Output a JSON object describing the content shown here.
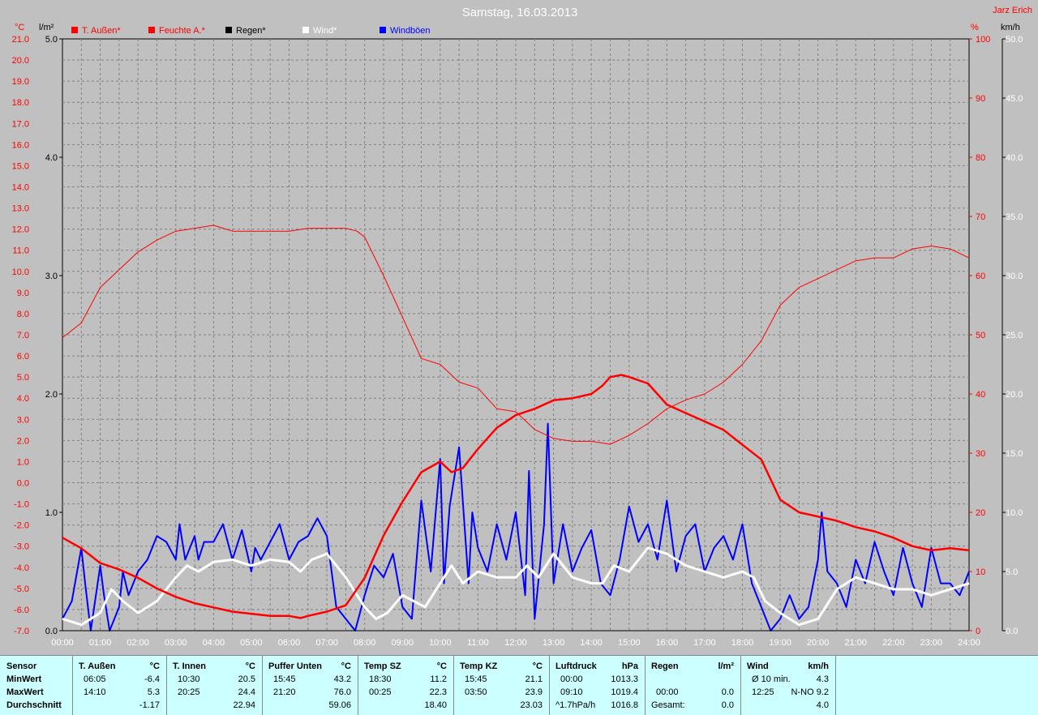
{
  "chart_data": {
    "type": "line",
    "title": "Samstag, 16.03.2013",
    "author": "Jarz Erich",
    "x_ticks": [
      "00:00",
      "01:00",
      "02:00",
      "03:00",
      "04:00",
      "05:00",
      "06:00",
      "07:00",
      "08:00",
      "09:00",
      "10:00",
      "11:00",
      "12:00",
      "13:00",
      "14:00",
      "15:00",
      "16:00",
      "17:00",
      "18:00",
      "19:00",
      "20:00",
      "21:00",
      "22:00",
      "23:00",
      "24:00"
    ],
    "axes": {
      "temp": {
        "unit": "°C",
        "range": [
          -7,
          21
        ],
        "ticks": [
          "21.0",
          "20.0",
          "19.0",
          "18.0",
          "17.0",
          "16.0",
          "15.0",
          "14.0",
          "13.0",
          "12.0",
          "11.0",
          "10.0",
          "9.0",
          "8.0",
          "7.0",
          "6.0",
          "5.0",
          "4.0",
          "3.0",
          "2.0",
          "1.0",
          "0.0",
          "-1.0",
          "-2.0",
          "-3.0",
          "-4.0",
          "-5.0",
          "-6.0",
          "-7.0"
        ],
        "color": "#ff0000"
      },
      "rain": {
        "unit": "l/m²",
        "range": [
          0,
          5
        ],
        "ticks": [
          "5.0",
          "4.0",
          "3.0",
          "2.0",
          "1.0",
          "0.0"
        ],
        "color": "#000000"
      },
      "humidity": {
        "unit": "%",
        "range": [
          0,
          100
        ],
        "ticks": [
          "100",
          "90",
          "80",
          "70",
          "60",
          "50",
          "40",
          "30",
          "20",
          "10",
          "0"
        ],
        "color": "#ff0000"
      },
      "wind": {
        "unit": "km/h",
        "range": [
          0,
          50
        ],
        "ticks": [
          "50.0",
          "45.0",
          "40.0",
          "35.0",
          "30.0",
          "25.0",
          "20.0",
          "15.0",
          "10.0",
          "5.0",
          "0.0"
        ],
        "color": "#ffffff"
      }
    },
    "grid": true,
    "legend": [
      {
        "name": "T. Außen*",
        "color": "#ff0000"
      },
      {
        "name": "Feuchte A.*",
        "color": "#ff0000"
      },
      {
        "name": "Regen*",
        "color": "#000000"
      },
      {
        "name": "Wind*",
        "color": "#ffffff"
      },
      {
        "name": "Windböen",
        "color": "#0000ff"
      }
    ],
    "series": [
      {
        "name": "T. Außen*",
        "axis": "temp",
        "color": "#ff0000",
        "x": [
          0,
          0.5,
          1,
          1.5,
          2,
          2.5,
          3,
          3.5,
          4,
          4.5,
          5,
          5.5,
          6,
          6.3,
          6.5,
          7,
          7.5,
          8,
          8.5,
          9,
          9.5,
          10,
          10.3,
          10.6,
          11,
          11.5,
          12,
          12.5,
          13,
          13.5,
          14,
          14.3,
          14.5,
          14.8,
          15,
          15.5,
          16,
          16.5,
          17,
          17.5,
          18,
          18.5,
          19,
          19.5,
          20,
          20.5,
          21,
          21.5,
          22,
          22.5,
          23,
          23.5,
          24
        ],
        "values": [
          -2.6,
          -3.1,
          -3.8,
          -4.1,
          -4.5,
          -5,
          -5.4,
          -5.7,
          -5.9,
          -6.1,
          -6.2,
          -6.3,
          -6.3,
          -6.4,
          -6.3,
          -6.1,
          -5.8,
          -4.5,
          -2.5,
          -0.9,
          0.5,
          1,
          0.5,
          0.7,
          1.6,
          2.6,
          3.2,
          3.5,
          3.9,
          4,
          4.2,
          4.6,
          5,
          5.1,
          5,
          4.7,
          3.7,
          3.3,
          2.9,
          2.5,
          1.8,
          1.1,
          -0.8,
          -1.4,
          -1.6,
          -1.8,
          -2.1,
          -2.3,
          -2.6,
          -3,
          -3.2,
          -3.1,
          -3.2
        ]
      },
      {
        "name": "Feuchte A.*",
        "axis": "humidity",
        "color": "#ff0000",
        "x": [
          0,
          0.5,
          1,
          1.5,
          2,
          2.5,
          3,
          3.5,
          4,
          4.5,
          5,
          5.5,
          6,
          6.5,
          7,
          7.5,
          7.8,
          8,
          8.5,
          9,
          9.5,
          10,
          10.5,
          11,
          11.5,
          12,
          12.5,
          13,
          13.5,
          14,
          14.5,
          15,
          15.5,
          16,
          16.5,
          17,
          17.5,
          18,
          18.5,
          19,
          19.5,
          20,
          20.5,
          21,
          21.5,
          22,
          22.5,
          23,
          23.5,
          24
        ],
        "values": [
          49.5,
          52,
          58,
          61,
          64,
          66,
          67.5,
          68,
          68.5,
          67.5,
          67.5,
          67.5,
          67.5,
          68,
          68,
          68,
          67.5,
          66.5,
          60,
          53,
          46,
          45,
          42,
          41,
          37.5,
          37,
          34,
          32.5,
          32,
          32,
          31.5,
          33,
          35,
          37.5,
          39,
          40,
          42,
          45,
          49,
          55,
          58,
          59.5,
          61,
          62.5,
          63,
          63,
          64.5,
          65,
          64.5,
          63
        ]
      },
      {
        "name": "Regen*",
        "axis": "rain",
        "color": "#000000",
        "x": [
          0,
          24
        ],
        "values": [
          0,
          0
        ]
      },
      {
        "name": "Wind*",
        "axis": "wind",
        "color": "#ffffff",
        "x": [
          0,
          0.5,
          1,
          1.3,
          1.6,
          2,
          2.5,
          3,
          3.3,
          3.6,
          4,
          4.5,
          5,
          5.5,
          6,
          6.3,
          6.6,
          7,
          7.5,
          8,
          8.3,
          8.6,
          9,
          9.3,
          9.6,
          10,
          10.3,
          10.6,
          11,
          11.5,
          12,
          12.3,
          12.6,
          13,
          13.5,
          14,
          14.3,
          14.6,
          15,
          15.5,
          16,
          16.5,
          17,
          17.5,
          18,
          18.3,
          18.6,
          19,
          19.5,
          20,
          20.5,
          21,
          21.5,
          22,
          22.5,
          23,
          23.5,
          24
        ],
        "values": [
          1,
          0.5,
          1.5,
          3.5,
          2.5,
          1.5,
          2.5,
          4.5,
          5.5,
          5,
          5.8,
          6,
          5.5,
          6,
          5.8,
          5,
          6,
          6.5,
          4.5,
          2,
          1,
          1.5,
          3,
          2.5,
          2,
          4,
          5.5,
          4,
          5,
          4.5,
          4.5,
          5.5,
          4.5,
          6.5,
          4.5,
          4,
          4,
          5.5,
          5,
          7,
          6.5,
          5.5,
          5,
          4.5,
          5,
          4.5,
          2.5,
          1.5,
          0.5,
          1,
          3.5,
          4.5,
          4,
          3.5,
          3.5,
          3,
          3.5,
          4
        ]
      },
      {
        "name": "Windböen",
        "axis": "wind",
        "color": "#0000ff",
        "x": [
          0,
          0.25,
          0.5,
          0.6,
          0.75,
          1,
          1.1,
          1.25,
          1.5,
          1.6,
          1.75,
          2,
          2.25,
          2.5,
          2.75,
          3,
          3.1,
          3.25,
          3.5,
          3.6,
          3.75,
          4,
          4.25,
          4.5,
          4.75,
          5,
          5.1,
          5.25,
          5.5,
          5.75,
          6,
          6.25,
          6.5,
          6.75,
          7,
          7.25,
          7.5,
          7.75,
          8,
          8.25,
          8.5,
          8.75,
          9,
          9.25,
          9.5,
          9.75,
          10,
          10.1,
          10.25,
          10.5,
          10.75,
          10.85,
          11,
          11.25,
          11.5,
          11.75,
          12,
          12.25,
          12.35,
          12.5,
          12.75,
          12.85,
          13,
          13.25,
          13.5,
          13.75,
          14,
          14.25,
          14.5,
          14.75,
          15,
          15.25,
          15.5,
          15.75,
          16,
          16.25,
          16.5,
          16.75,
          17,
          17.25,
          17.5,
          17.75,
          18,
          18.25,
          18.5,
          18.75,
          19,
          19.25,
          19.5,
          19.75,
          20,
          20.1,
          20.25,
          20.5,
          20.75,
          21,
          21.25,
          21.5,
          21.75,
          22,
          22.25,
          22.5,
          22.75,
          23,
          23.25,
          23.5,
          23.75,
          24
        ],
        "values": [
          1,
          2.5,
          7,
          4,
          0,
          5.5,
          3,
          0,
          2,
          5,
          3,
          5,
          6,
          8,
          7.5,
          6,
          9,
          6,
          8,
          6,
          7.5,
          7.5,
          9,
          6,
          8.5,
          5,
          7,
          6,
          7.5,
          9,
          6,
          7.5,
          8,
          9.5,
          8,
          2,
          1,
          0,
          3,
          5.5,
          4.5,
          6.5,
          2,
          1,
          11,
          5,
          14.5,
          4,
          10.5,
          15.5,
          4,
          10,
          7,
          5,
          9,
          6,
          10,
          3,
          13.5,
          1,
          9,
          17.5,
          4,
          9,
          5,
          7,
          8.5,
          4,
          3,
          6,
          10.5,
          7.5,
          9,
          6,
          11,
          5,
          8,
          9,
          5,
          7,
          8,
          6,
          9,
          4,
          2,
          0,
          1,
          3,
          1,
          2,
          6,
          10,
          5,
          4,
          2,
          6,
          4,
          7.5,
          5,
          3,
          7,
          4,
          2,
          7,
          4,
          4,
          3,
          5
        ]
      }
    ]
  },
  "table": {
    "row_labels": {
      "sensor": "Sensor",
      "min": "MinWert",
      "max": "MaxWert",
      "avg": "Durchschnitt"
    },
    "columns": [
      {
        "title": "T. Außen",
        "unit": "°C",
        "min_time": "06:05",
        "min_val": "-6.4",
        "max_time": "14:10",
        "max_val": "5.3",
        "avg_time": "",
        "avg_val": "-1.17"
      },
      {
        "title": "T. Innen",
        "unit": "°C",
        "min_time": "10:30",
        "min_val": "20.5",
        "max_time": "20:25",
        "max_val": "24.4",
        "avg_time": "",
        "avg_val": "22.94"
      },
      {
        "title": "Puffer Unten",
        "unit": "°C",
        "min_time": "15:45",
        "min_val": "43.2",
        "max_time": "21:20",
        "max_val": "76.0",
        "avg_time": "",
        "avg_val": "59.06"
      },
      {
        "title": "Temp SZ",
        "unit": "°C",
        "min_time": "18:30",
        "min_val": "11.2",
        "max_time": "00:25",
        "max_val": "22.3",
        "avg_time": "",
        "avg_val": "18.40"
      },
      {
        "title": "Temp KZ",
        "unit": "°C",
        "min_time": "15:45",
        "min_val": "21.1",
        "max_time": "03:50",
        "max_val": "23.9",
        "avg_time": "",
        "avg_val": "23.03"
      },
      {
        "title": "Luftdruck",
        "unit": "hPa",
        "min_time": "00:00",
        "min_val": "1013.3",
        "max_time": "09:10",
        "max_val": "1019.4",
        "avg_time": "^1.7hPa/h",
        "avg_val": "1016.8"
      },
      {
        "title": "Regen",
        "unit": "l/m²",
        "min_time": "",
        "min_val": "",
        "max_time": "00:00",
        "max_val": "0.0",
        "avg_time": "Gesamt:",
        "avg_val": "0.0"
      },
      {
        "title": "Wind",
        "unit": "km/h",
        "min_time": "Ø 10 min.",
        "min_val": "4.3",
        "max_time": "12:25",
        "max_val": "N-NO 9.2",
        "avg_time": "",
        "avg_val": "4.0"
      }
    ]
  }
}
